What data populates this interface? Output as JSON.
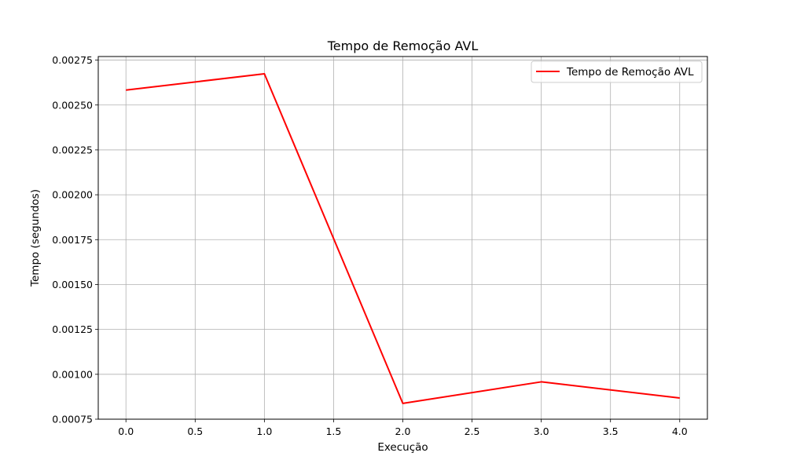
{
  "chart_data": {
    "type": "line",
    "title": "Tempo de Remoção AVL",
    "xlabel": "Execução",
    "ylabel": "Tempo (segundos)",
    "xlim": [
      -0.2,
      4.2
    ],
    "ylim": [
      0.00075,
      0.00277
    ],
    "grid": true,
    "legend_position": "top-right",
    "x_ticks": [
      0.0,
      0.5,
      1.0,
      1.5,
      2.0,
      2.5,
      3.0,
      3.5,
      4.0
    ],
    "x_tick_labels": [
      "0.0",
      "0.5",
      "1.0",
      "1.5",
      "2.0",
      "2.5",
      "3.0",
      "3.5",
      "4.0"
    ],
    "y_ticks": [
      0.00075,
      0.001,
      0.00125,
      0.0015,
      0.00175,
      0.002,
      0.00225,
      0.0025,
      0.00275
    ],
    "y_tick_labels": [
      "0.00075",
      "0.00100",
      "0.00125",
      "0.00150",
      "0.00175",
      "0.00200",
      "0.00225",
      "0.00250",
      "0.00275"
    ],
    "series": [
      {
        "name": "Tempo de Remoção AVL",
        "color": "#ff0000",
        "x": [
          0,
          1,
          2,
          3,
          4
        ],
        "y": [
          0.002583,
          0.002674,
          0.000838,
          0.000958,
          0.000868
        ]
      }
    ]
  }
}
